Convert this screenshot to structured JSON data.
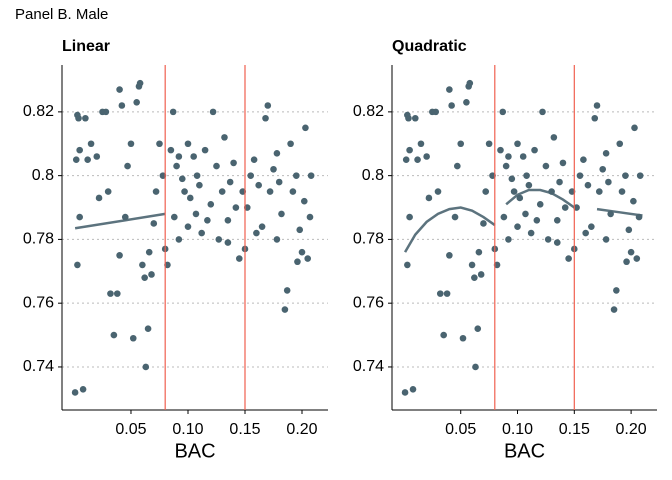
{
  "title": "Panel B. Male",
  "chart_data": [
    {
      "type": "scatter",
      "title": "Linear",
      "xlabel": "BAC",
      "xlim": [
        -0.0105,
        0.2228
      ],
      "ylim": [
        0.7265,
        0.8347
      ],
      "xticks": [
        0.05,
        {
          "value": 0.1,
          "label": "0.10"
        },
        0.15,
        {
          "value": 0.2,
          "label": "0.20"
        }
      ],
      "yticks": [
        0.74,
        0.76,
        0.78,
        0.8,
        0.82
      ],
      "grid": true,
      "vlines": [
        0.08,
        0.15
      ],
      "vline_color": "#f0604f",
      "series": [
        {
          "color": "#4a6470",
          "x": [
            0.002,
            0.003,
            0.004,
            0.005,
            0.005,
            0.003,
            0.001,
            0.008,
            0.01,
            0.012,
            0.015,
            0.02,
            0.022,
            0.025,
            0.028,
            0.03,
            0.032,
            0.035,
            0.038,
            0.04,
            0.04,
            0.042,
            0.045,
            0.047,
            0.05,
            0.052,
            0.055,
            0.057,
            0.058,
            0.06,
            0.062,
            0.063,
            0.065,
            0.066,
            0.068,
            0.07,
            0.072,
            0.075,
            0.078,
            0.08,
            0.082,
            0.085,
            0.087,
            0.088,
            0.09,
            0.092,
            0.095,
            0.097,
            0.1,
            0.1,
            0.102,
            0.105,
            0.107,
            0.11,
            0.112,
            0.115,
            0.117,
            0.12,
            0.122,
            0.125,
            0.127,
            0.13,
            0.132,
            0.135,
            0.137,
            0.14,
            0.142,
            0.145,
            0.148,
            0.15,
            0.152,
            0.155,
            0.158,
            0.16,
            0.162,
            0.165,
            0.168,
            0.17,
            0.172,
            0.175,
            0.178,
            0.18,
            0.182,
            0.185,
            0.187,
            0.19,
            0.192,
            0.195,
            0.198,
            0.2,
            0.202,
            0.205,
            0.207,
            0.208,
            0.203,
            0.196,
            0.178,
            0.135,
            0.092,
            0.108
          ],
          "values": [
            0.805,
            0.819,
            0.818,
            0.808,
            0.787,
            0.772,
            0.732,
            0.733,
            0.818,
            0.805,
            0.81,
            0.806,
            0.793,
            0.82,
            0.82,
            0.795,
            0.763,
            0.75,
            0.763,
            0.775,
            0.827,
            0.822,
            0.787,
            0.803,
            0.81,
            0.749,
            0.823,
            0.828,
            0.829,
            0.772,
            0.768,
            0.74,
            0.752,
            0.776,
            0.769,
            0.785,
            0.795,
            0.81,
            0.8,
            0.777,
            0.772,
            0.808,
            0.82,
            0.787,
            0.803,
            0.78,
            0.799,
            0.795,
            0.81,
            0.784,
            0.793,
            0.806,
            0.788,
            0.797,
            0.782,
            0.808,
            0.786,
            0.791,
            0.82,
            0.803,
            0.78,
            0.795,
            0.812,
            0.786,
            0.798,
            0.804,
            0.79,
            0.774,
            0.795,
            0.777,
            0.79,
            0.8,
            0.805,
            0.782,
            0.797,
            0.784,
            0.818,
            0.822,
            0.795,
            0.802,
            0.78,
            0.798,
            0.788,
            0.758,
            0.764,
            0.81,
            0.795,
            0.8,
            0.783,
            0.776,
            0.792,
            0.774,
            0.787,
            0.8,
            0.815,
            0.773,
            0.807,
            0.779,
            0.806,
            0.8
          ]
        },
        {
          "color": "#4a6470",
          "line": true,
          "x": [
            0.001,
            0.08,
            0.08,
            0.15,
            0.15,
            0.21
          ],
          "values": [
            0.7835,
            0.788,
            null,
            0.793,
            null,
            0.787
          ]
        }
      ]
    },
    {
      "type": "scatter",
      "title": "Quadratic",
      "xlabel": "BAC",
      "xlim": [
        -0.0105,
        0.2228
      ],
      "ylim": [
        0.7265,
        0.8347
      ],
      "xticks": [
        0.05,
        {
          "value": 0.1,
          "label": "0.10"
        },
        0.15,
        {
          "value": 0.2,
          "label": "0.20"
        }
      ],
      "yticks": [
        0.74,
        0.76,
        0.78,
        0.8,
        0.82
      ],
      "grid": true,
      "vlines": [
        0.08,
        0.15
      ],
      "vline_color": "#f0604f",
      "series": [
        {
          "color": "#4a6470",
          "x": [
            0.002,
            0.003,
            0.004,
            0.005,
            0.005,
            0.003,
            0.001,
            0.008,
            0.01,
            0.012,
            0.015,
            0.02,
            0.022,
            0.025,
            0.028,
            0.03,
            0.032,
            0.035,
            0.038,
            0.04,
            0.04,
            0.042,
            0.045,
            0.047,
            0.05,
            0.052,
            0.055,
            0.057,
            0.058,
            0.06,
            0.062,
            0.063,
            0.065,
            0.066,
            0.068,
            0.07,
            0.072,
            0.075,
            0.078,
            0.08,
            0.082,
            0.085,
            0.087,
            0.088,
            0.09,
            0.092,
            0.095,
            0.097,
            0.1,
            0.1,
            0.102,
            0.105,
            0.107,
            0.11,
            0.112,
            0.115,
            0.117,
            0.12,
            0.122,
            0.125,
            0.127,
            0.13,
            0.132,
            0.135,
            0.137,
            0.14,
            0.142,
            0.145,
            0.148,
            0.15,
            0.152,
            0.155,
            0.158,
            0.16,
            0.162,
            0.165,
            0.168,
            0.17,
            0.172,
            0.175,
            0.178,
            0.18,
            0.182,
            0.185,
            0.187,
            0.19,
            0.192,
            0.195,
            0.198,
            0.2,
            0.202,
            0.205,
            0.207,
            0.208,
            0.203,
            0.196,
            0.178,
            0.135,
            0.092,
            0.108
          ],
          "values": [
            0.805,
            0.819,
            0.818,
            0.808,
            0.787,
            0.772,
            0.732,
            0.733,
            0.818,
            0.805,
            0.81,
            0.806,
            0.793,
            0.82,
            0.82,
            0.795,
            0.763,
            0.75,
            0.763,
            0.775,
            0.827,
            0.822,
            0.787,
            0.803,
            0.81,
            0.749,
            0.823,
            0.828,
            0.829,
            0.772,
            0.768,
            0.74,
            0.752,
            0.776,
            0.769,
            0.785,
            0.795,
            0.81,
            0.8,
            0.777,
            0.772,
            0.808,
            0.82,
            0.787,
            0.803,
            0.78,
            0.799,
            0.795,
            0.81,
            0.784,
            0.793,
            0.806,
            0.788,
            0.797,
            0.782,
            0.808,
            0.786,
            0.791,
            0.82,
            0.803,
            0.78,
            0.795,
            0.812,
            0.786,
            0.798,
            0.804,
            0.79,
            0.774,
            0.795,
            0.777,
            0.79,
            0.8,
            0.805,
            0.782,
            0.797,
            0.784,
            0.818,
            0.822,
            0.795,
            0.802,
            0.78,
            0.798,
            0.788,
            0.758,
            0.764,
            0.81,
            0.795,
            0.8,
            0.783,
            0.776,
            0.792,
            0.774,
            0.787,
            0.8,
            0.815,
            0.773,
            0.807,
            0.779,
            0.806,
            0.8
          ]
        },
        {
          "color": "#4a6470",
          "line": true,
          "x": [
            0.001,
            0.01,
            0.02,
            0.03,
            0.04,
            0.05,
            0.06,
            0.07,
            0.08,
            0.08,
            0.09,
            0.1,
            0.11,
            0.12,
            0.13,
            0.14,
            0.15,
            0.15,
            0.17,
            0.19,
            0.21
          ],
          "values": [
            0.776,
            0.7815,
            0.7855,
            0.788,
            0.7895,
            0.79,
            0.789,
            0.787,
            0.7845,
            null,
            0.791,
            0.794,
            0.7955,
            0.7955,
            0.7945,
            0.7925,
            0.79,
            null,
            0.7895,
            0.7885,
            0.7875
          ]
        }
      ]
    }
  ]
}
